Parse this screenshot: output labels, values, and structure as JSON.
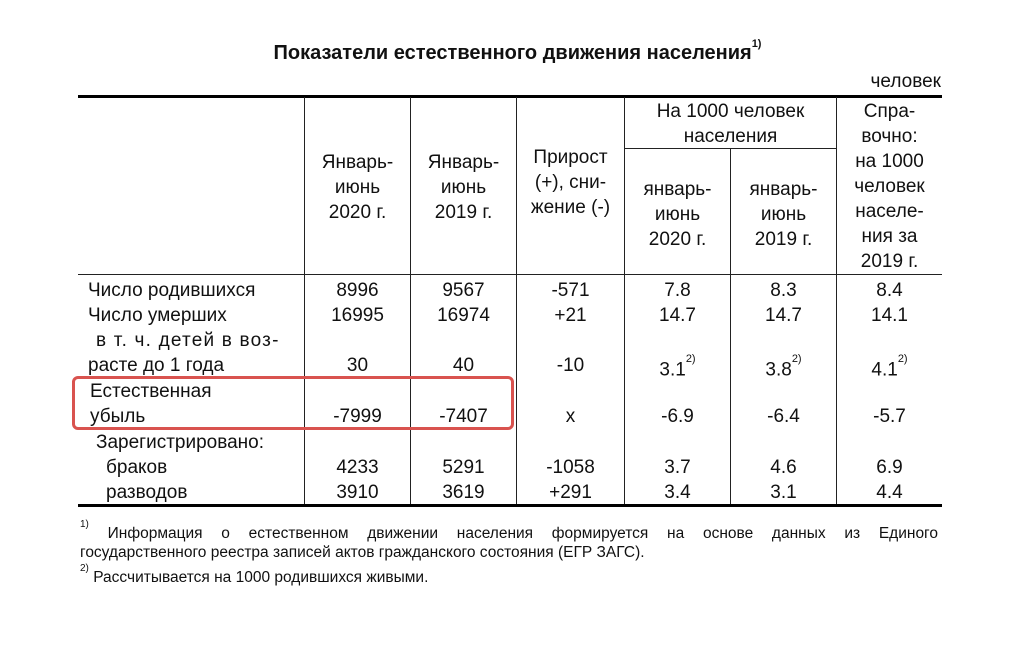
{
  "title": "Показатели естественного движения населения",
  "title_note": "1)",
  "unit": "человек",
  "headers": {
    "col1": [
      "Январь-",
      "июнь",
      "2020 г."
    ],
    "col2": [
      "Январь-",
      "июнь",
      "2019 г."
    ],
    "col3": [
      "Прирост",
      "(+), сни-",
      "жение (-)"
    ],
    "per1000": [
      "На 1000 человек",
      "населения"
    ],
    "col4": [
      "январь-",
      "июнь",
      "2020 г."
    ],
    "col5": [
      "январь-",
      "июнь",
      "2019 г."
    ],
    "col6": [
      "Спра-",
      "вочно:",
      "на 1000",
      "человек",
      "населе-",
      "ния за",
      "2019 г."
    ]
  },
  "rows": {
    "births": {
      "label": "Число родившихся",
      "v": [
        "8996",
        "9567",
        "-571",
        "7.8",
        "8.3",
        "8.4"
      ]
    },
    "deaths": {
      "label": "Число умерших",
      "v": [
        "16995",
        "16974",
        "+21",
        "14.7",
        "14.7",
        "14.1"
      ]
    },
    "infant": {
      "label1": "в т. ч. детей в воз-",
      "label2": "расте до 1 года",
      "v": [
        "30",
        "40",
        "-10",
        "3.1",
        "3.8",
        "4.1"
      ],
      "note": "2)"
    },
    "natural": {
      "label1": "Естественная",
      "label2": "убыль",
      "v": [
        "-7999",
        "-7407",
        "x",
        "-6.9",
        "-6.4",
        "-5.7"
      ]
    },
    "registered": {
      "label": "Зарегистрировано:"
    },
    "marriages": {
      "label": "браков",
      "v": [
        "4233",
        "5291",
        "-1058",
        "3.7",
        "4.6",
        "6.9"
      ]
    },
    "divorces": {
      "label": "разводов",
      "v": [
        "3910",
        "3619",
        "+291",
        "3.4",
        "3.1",
        "4.4"
      ]
    }
  },
  "footnotes": {
    "n1_mark": "1)",
    "n1_line1": "Информация о естественном движении населения формируется на основе данных из Единого",
    "n1_line2": "государственного реестра записей актов гражданского состояния (ЕГР ЗАГС).",
    "n2_mark": "2)",
    "n2_text": "Рассчитывается на 1000 родившихся живыми."
  }
}
